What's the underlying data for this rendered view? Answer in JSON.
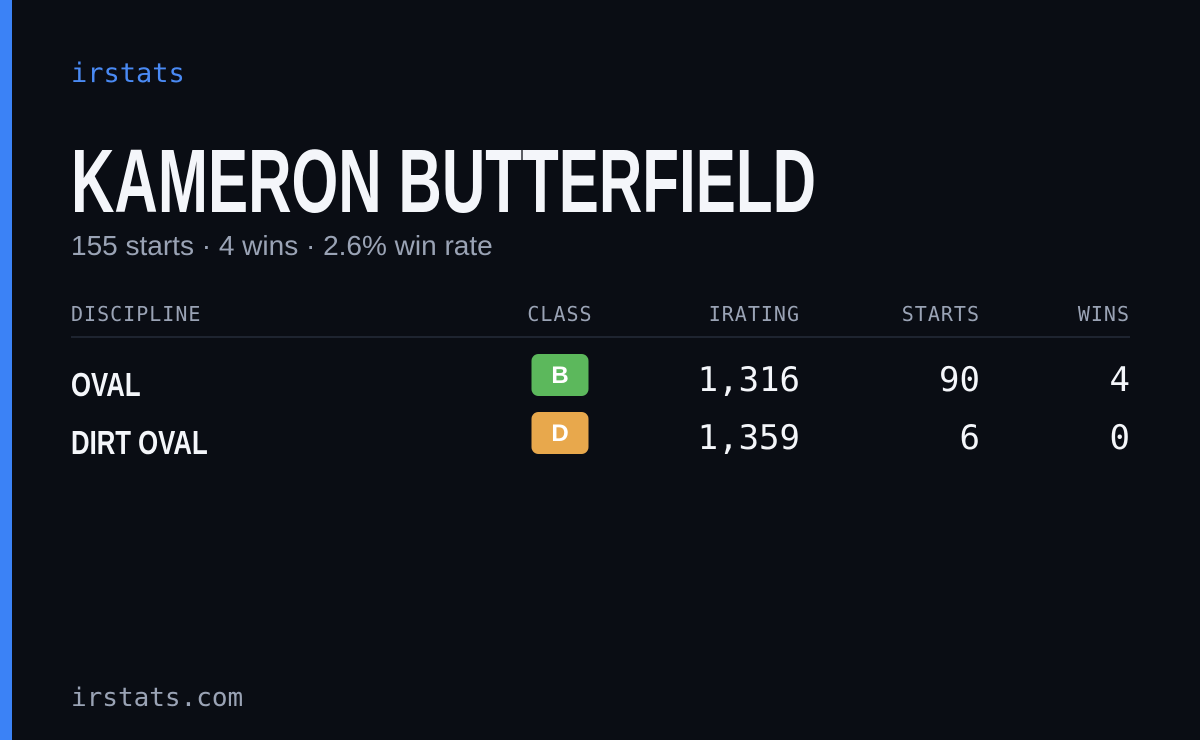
{
  "brand": "irstats",
  "driver": {
    "name": "KAMERON BUTTERFIELD",
    "summary": "155 starts · 4 wins · 2.6% win rate"
  },
  "table": {
    "columns": [
      "DISCIPLINE",
      "CLASS",
      "IRATING",
      "STARTS",
      "WINS"
    ],
    "rows": [
      {
        "discipline": "OVAL",
        "class": "B",
        "class_color": "#5cb85c",
        "irating": "1,316",
        "starts": "90",
        "wins": "4"
      },
      {
        "discipline": "DIRT OVAL",
        "class": "D",
        "class_color": "#e8a84c",
        "irating": "1,359",
        "starts": "6",
        "wins": "0"
      }
    ]
  },
  "footer": "irstats.com"
}
